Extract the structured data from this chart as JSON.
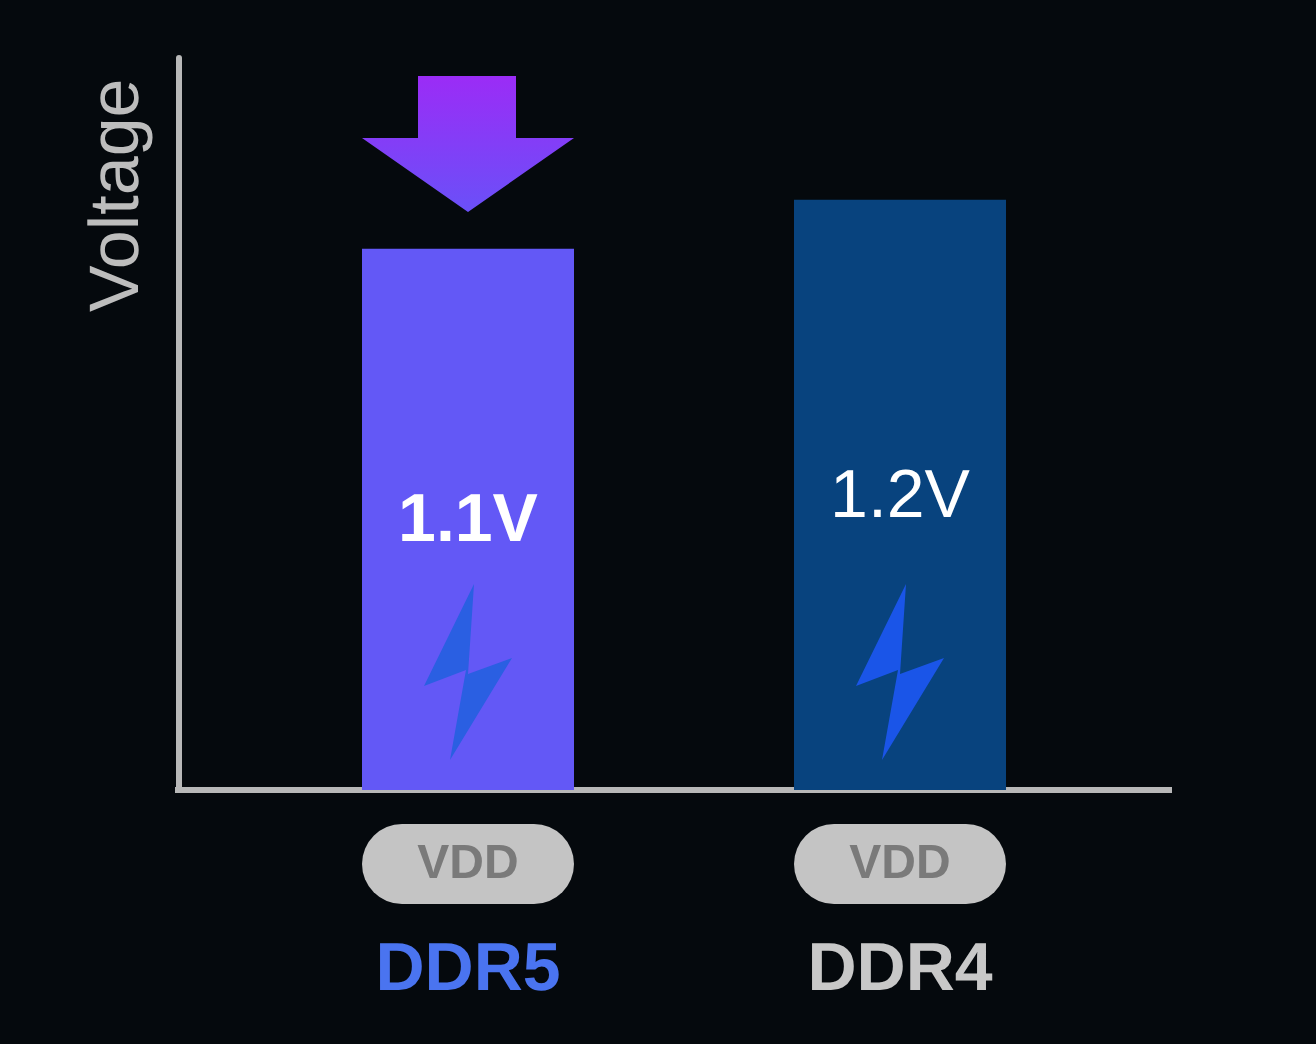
{
  "chart_data": {
    "type": "bar",
    "ylabel": "Voltage",
    "categories": [
      "DDR5",
      "DDR4"
    ],
    "values": [
      1.1,
      1.2
    ],
    "colors": [
      "#6358f6",
      "#08437e"
    ],
    "value_labels": [
      "1.1V",
      "1.2V"
    ],
    "tick_labels": "x",
    "annotations": [
      "VDD",
      "VDD"
    ]
  }
}
